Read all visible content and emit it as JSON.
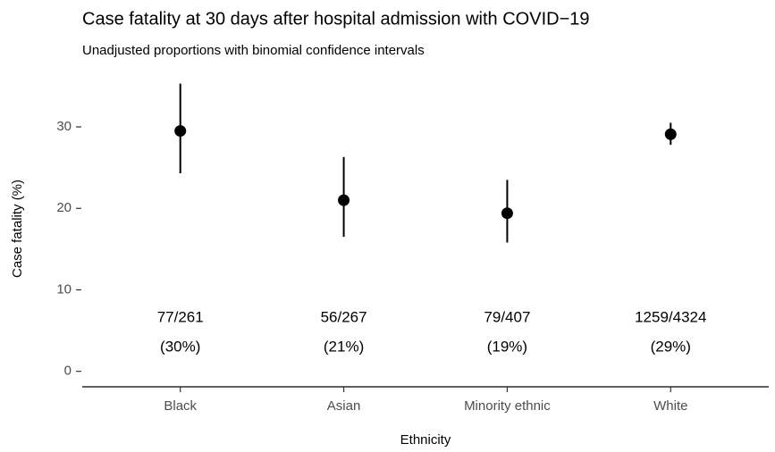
{
  "chart_data": {
    "type": "pointrange",
    "title": "Case fatality at 30 days after hospital admission with COVID−19",
    "subtitle": "Unadjusted proportions with binomial confidence intervals",
    "x_label": "Ethnicity",
    "y_label": "Case fatality (%)",
    "categories": [
      "Black",
      "Asian",
      "Minority ethnic",
      "White"
    ],
    "values": [
      29.5,
      21.0,
      19.4,
      29.1
    ],
    "value_labels": [
      "(30%)",
      "(21%)",
      "(19%)",
      "(29%)"
    ],
    "lower": [
      24.3,
      16.5,
      15.8,
      27.8
    ],
    "upper": [
      35.3,
      26.3,
      23.5,
      30.5
    ],
    "counts": [
      "77/261",
      "56/267",
      "79/407",
      "1259/4324"
    ],
    "color": "#000000",
    "ylim": [
      -1.9,
      36.8
    ],
    "yticks": [
      0,
      10,
      20,
      30
    ],
    "grid": false
  }
}
